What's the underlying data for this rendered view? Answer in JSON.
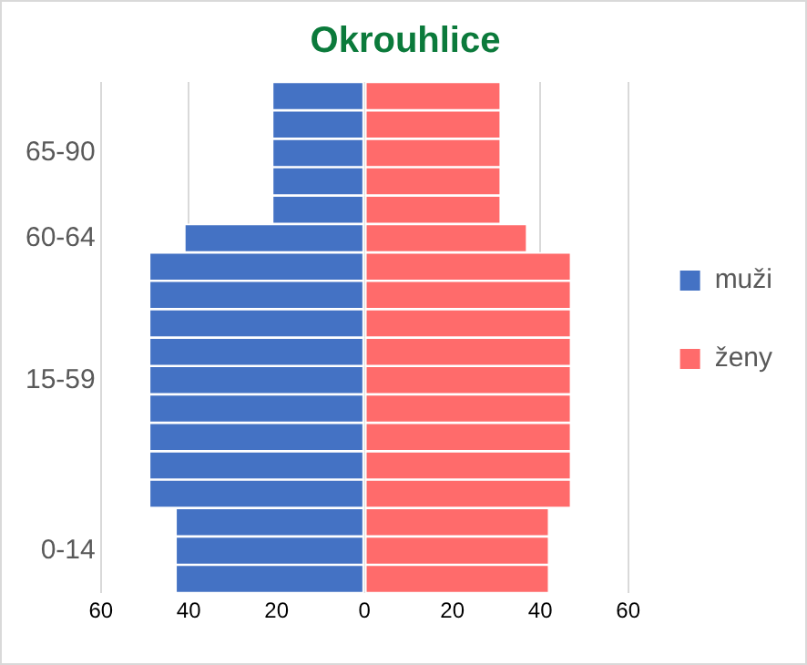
{
  "chart_data": {
    "type": "bar",
    "title": "Okrouhlice",
    "orientation": "horizontal",
    "stacked": true,
    "categories": [
      null,
      null,
      "65-90",
      null,
      null,
      "60-64",
      null,
      null,
      null,
      null,
      "15-59",
      null,
      null,
      null,
      null,
      null,
      "0-14",
      null
    ],
    "series": [
      {
        "name": "muži",
        "color": "#4472c4",
        "values": [
          -21,
          -21,
          -21,
          -21,
          -21,
          -41,
          -49,
          -49,
          -49,
          -49,
          -49,
          -49,
          -49,
          -49,
          -49,
          -43,
          -43,
          -43
        ]
      },
      {
        "name": "ženy",
        "color": "#ff6b6b",
        "values": [
          31,
          31,
          31,
          31,
          31,
          37,
          47,
          47,
          47,
          47,
          47,
          47,
          47,
          47,
          47,
          42,
          42,
          42
        ]
      }
    ],
    "xlim": [
      -60,
      60
    ],
    "xticks": [
      {
        "value": -60,
        "label": "60"
      },
      {
        "value": -40,
        "label": "40"
      },
      {
        "value": -20,
        "label": "20"
      },
      0,
      20,
      40,
      60
    ],
    "grid": "x",
    "legend": "right"
  }
}
